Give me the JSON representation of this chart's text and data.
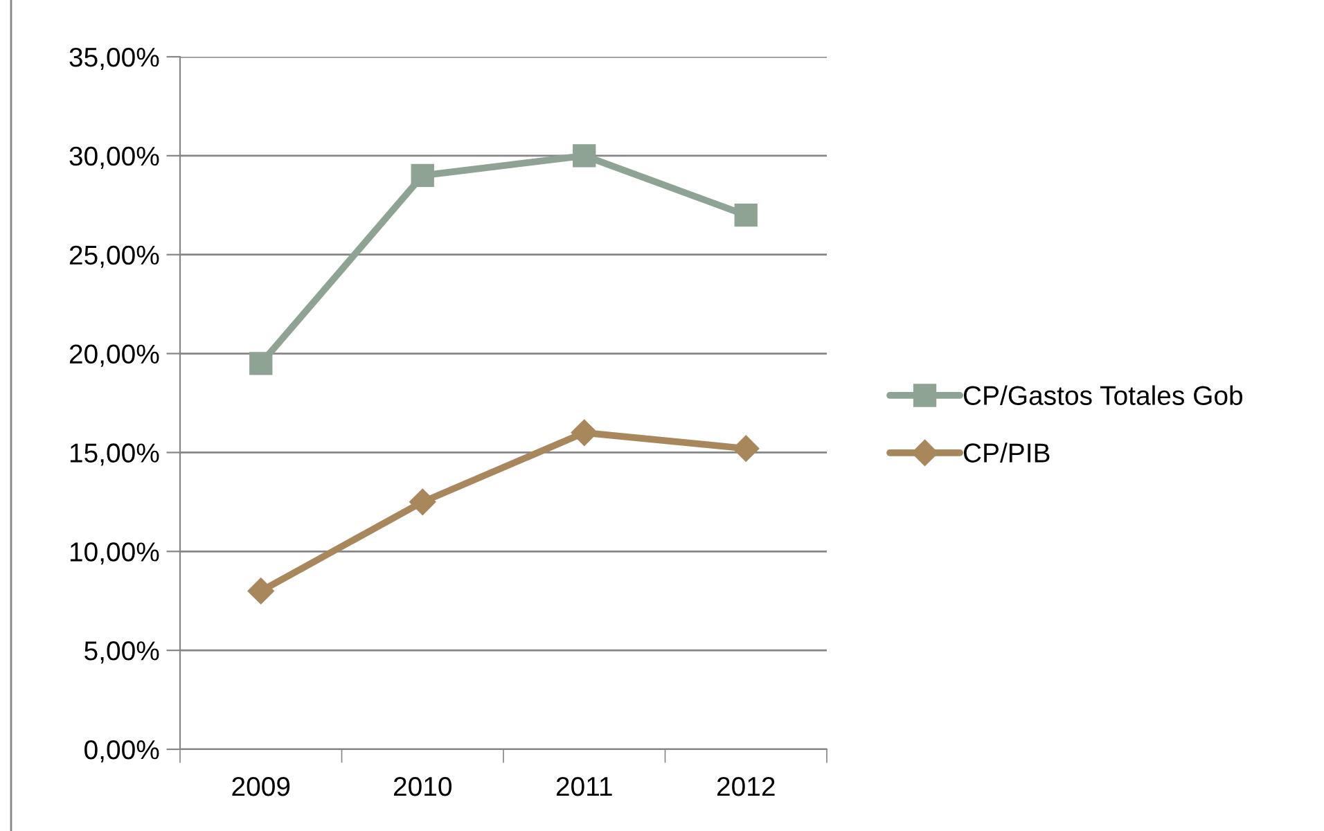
{
  "chart_data": {
    "type": "line",
    "categories": [
      "2009",
      "2010",
      "2011",
      "2012"
    ],
    "series": [
      {
        "name": "CP/Gastos Totales Gob",
        "color": "#8fa394",
        "marker": "square",
        "values": [
          19.5,
          29,
          30,
          27
        ]
      },
      {
        "name": "CP/PIB",
        "color": "#a8875c",
        "marker": "diamond",
        "values": [
          8,
          12.5,
          16,
          15.2
        ]
      }
    ],
    "ylim": [
      0,
      35
    ],
    "yticks": [
      {
        "value": 0,
        "label": "0,00%"
      },
      {
        "value": 5,
        "label": "5,00%"
      },
      {
        "value": 10,
        "label": "10,00%"
      },
      {
        "value": 15,
        "label": "15,00%"
      },
      {
        "value": 20,
        "label": "20,00%"
      },
      {
        "value": 25,
        "label": "25,00%"
      },
      {
        "value": 30,
        "label": "30,00%"
      },
      {
        "value": 35,
        "label": "35,00%"
      }
    ],
    "grid": "y",
    "legend": "right",
    "line_style": "solid"
  }
}
